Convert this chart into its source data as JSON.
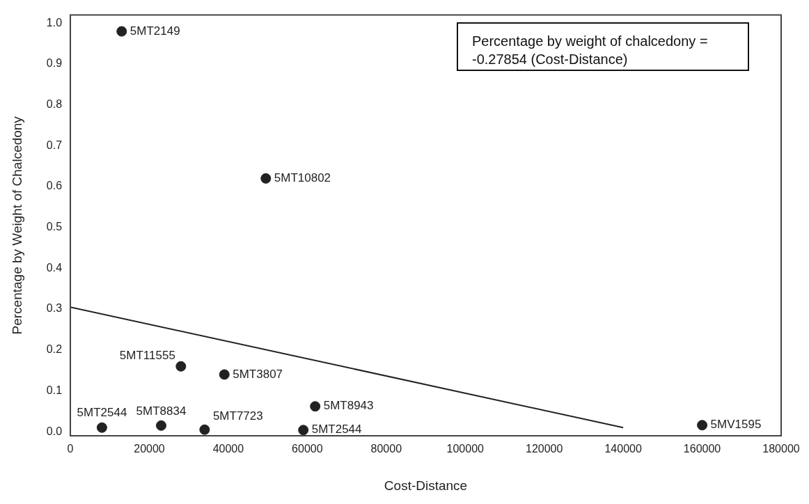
{
  "chart_data": {
    "type": "scatter",
    "xlabel": "Cost-Distance",
    "ylabel": "Percentage by Weight of Chalcedony",
    "annotations": [
      "Percentage by weight of chalcedony = -0.27854 (Cost-Distance)"
    ],
    "series": [
      {
        "color": "#222222",
        "marker": "circle",
        "x": [
          13000,
          49500,
          28000,
          39000,
          8000,
          23000,
          34000,
          59000,
          62000,
          160000
        ],
        "values": [
          0.98,
          0.62,
          0.16,
          0.14,
          0.01,
          0.015,
          0.005,
          0.004,
          0.062,
          0.016
        ],
        "value_labels": [
          "5MT2149",
          "5MT10802",
          "5MT11555",
          "5MT3807",
          "5MT2544",
          "5MT8834",
          "5MT7723",
          "5MT2544",
          "5MT8943",
          "5MV1595"
        ]
      },
      {
        "type": "line",
        "marker": "none",
        "color": "#222222",
        "x": [
          0,
          140000
        ],
        "values": [
          0.305,
          0.01
        ]
      }
    ],
    "xlim": [
      0,
      180000
    ],
    "ylim": [
      -0.01,
      1.02
    ],
    "xticks": [
      0,
      20000,
      40000,
      60000,
      80000,
      100000,
      120000,
      140000,
      160000,
      180000
    ],
    "yticks": [
      {
        "value": 0,
        "label": "0.0"
      },
      {
        "value": 0.1,
        "label": "0.1"
      },
      {
        "value": 0.2,
        "label": "0.2"
      },
      {
        "value": 0.3,
        "label": "0.3"
      },
      {
        "value": 0.4,
        "label": "0.4"
      },
      {
        "value": 0.5,
        "label": "0.5"
      },
      {
        "value": 0.6,
        "label": "0.6"
      },
      {
        "value": 0.7,
        "label": "0.7"
      },
      {
        "value": 0.8,
        "label": "0.8"
      },
      {
        "value": 0.9,
        "label": "0.9"
      },
      {
        "value": 1,
        "label": "1.0"
      }
    ],
    "grid": false,
    "legend": false,
    "line_style": "solid"
  }
}
